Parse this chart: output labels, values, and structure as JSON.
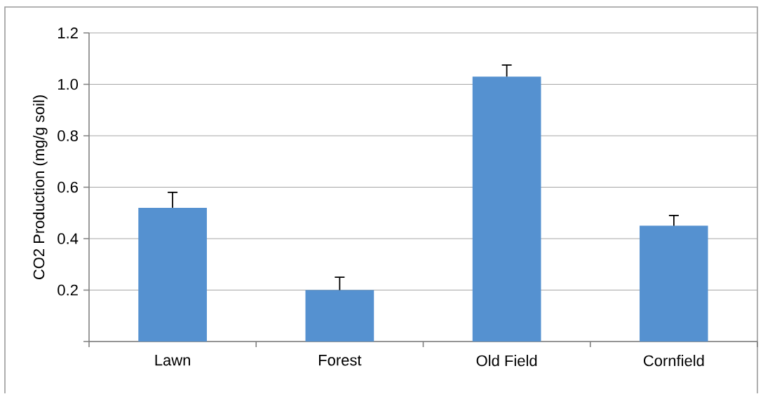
{
  "chart_data": {
    "type": "bar",
    "ylabel": "CO2 Production (mg/g soil)",
    "categories": [
      "Lawn",
      "Forest",
      "Old Field",
      "Cornfield"
    ],
    "values": [
      0.52,
      0.2,
      1.03,
      0.45
    ],
    "errors": [
      [
        0.52,
        0.58
      ],
      [
        0.2,
        0.25
      ],
      [
        1.03,
        1.075
      ],
      [
        0.45,
        0.49
      ]
    ],
    "color": "#5591d0",
    "ylim": [
      0,
      1.2
    ],
    "yticks": [
      {
        "value": 0,
        "label": null
      },
      0.2,
      0.4,
      0.6,
      0.8,
      {
        "value": 1.0,
        "label": "1.0"
      },
      {
        "value": 1.2,
        "label": "1.2"
      }
    ],
    "grid": "y"
  }
}
